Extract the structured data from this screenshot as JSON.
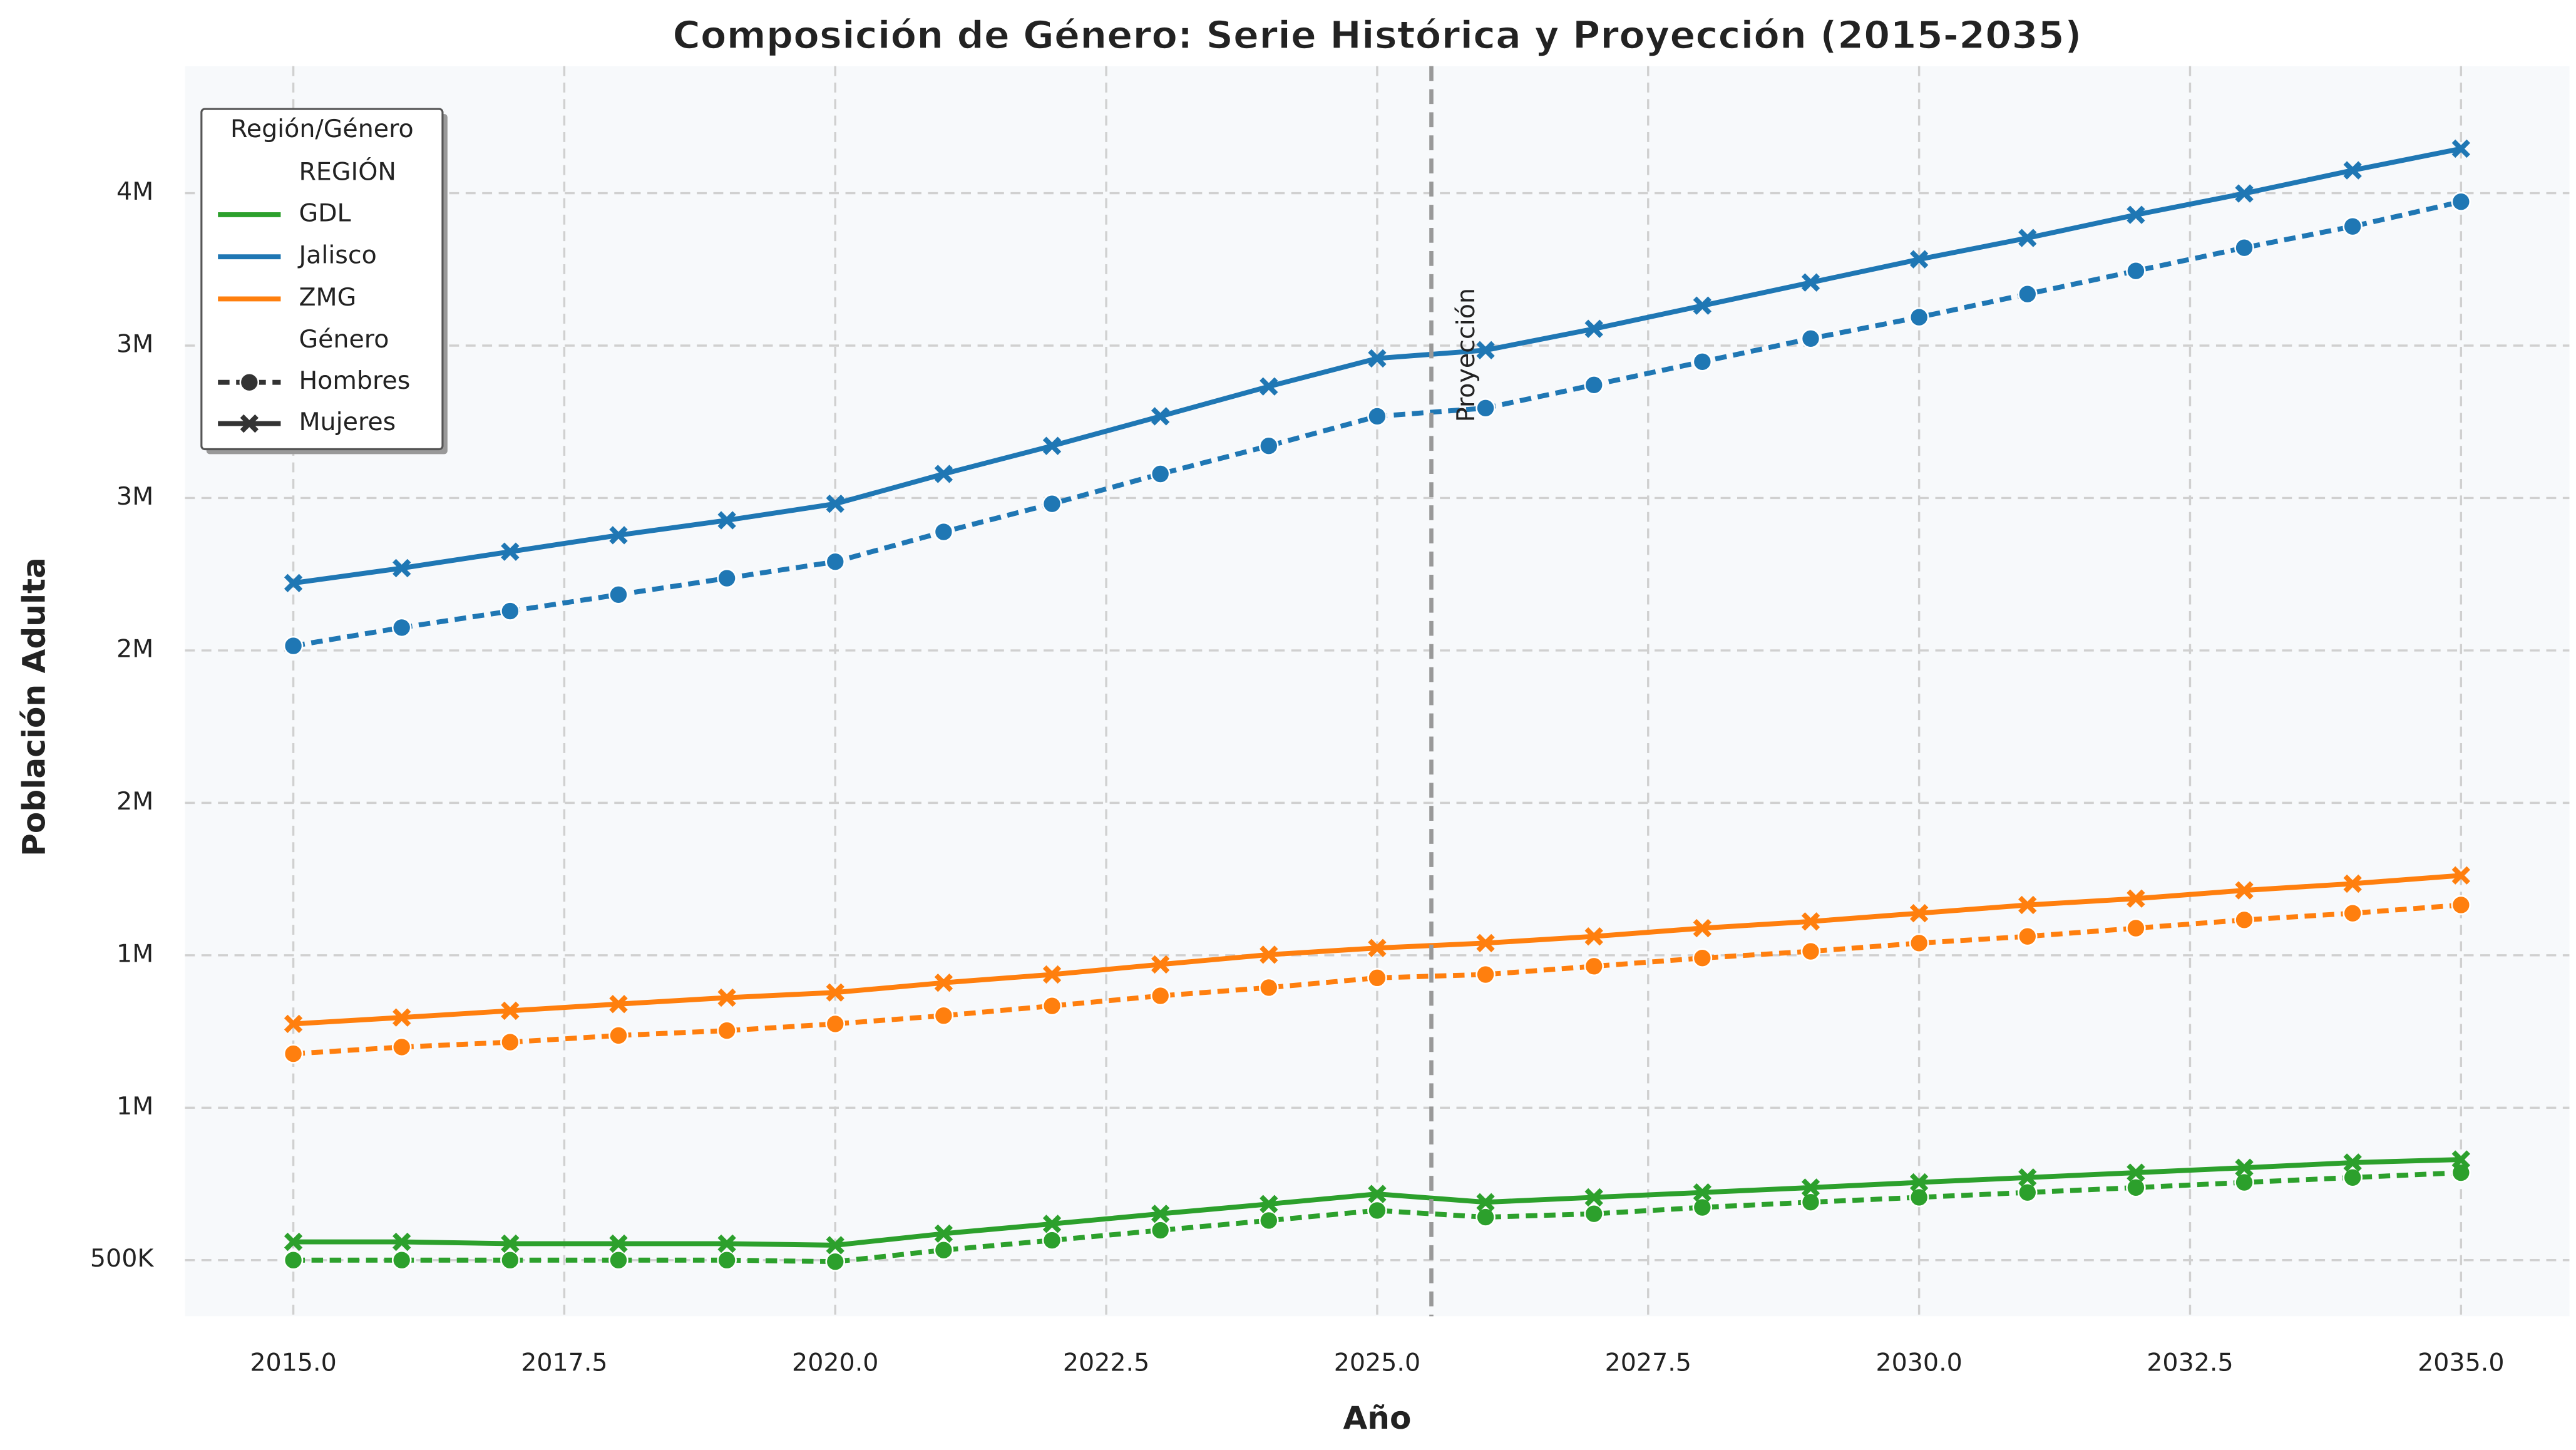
{
  "chart_data": {
    "type": "line",
    "title": "Composición de Género: Serie Histórica y Proyección (2015-2035)",
    "x_label": "Año",
    "y_label": "Población Adulta",
    "x": [
      2015,
      2016,
      2017,
      2018,
      2019,
      2020,
      2021,
      2022,
      2023,
      2024,
      2025,
      2026,
      2027,
      2028,
      2029,
      2030,
      2031,
      2032,
      2033,
      2034,
      2035
    ],
    "xlim": [
      2014,
      2036
    ],
    "xticks": [
      {
        "value": 2015,
        "label": "2015.0"
      },
      {
        "value": 2017.5,
        "label": "2017.5"
      },
      {
        "value": 2020,
        "label": "2020.0"
      },
      {
        "value": 2022.5,
        "label": "2022.5"
      },
      {
        "value": 2025,
        "label": "2025.0"
      },
      {
        "value": 2027.5,
        "label": "2027.5"
      },
      {
        "value": 2030,
        "label": "2030.0"
      },
      {
        "value": 2032.5,
        "label": "2032.5"
      },
      {
        "value": 2035,
        "label": "2035.0"
      }
    ],
    "ylim": [
      316000,
      4417000
    ],
    "yticks": [
      {
        "value": 500000,
        "label": "500K"
      },
      {
        "value": 1000000,
        "label": "1M"
      },
      {
        "value": 1500000,
        "label": "1M"
      },
      {
        "value": 2000000,
        "label": "2M"
      },
      {
        "value": 2500000,
        "label": "2M"
      },
      {
        "value": 3000000,
        "label": "3M"
      },
      {
        "value": 3500000,
        "label": "3M"
      },
      {
        "value": 4000000,
        "label": "4M"
      }
    ],
    "grid": true,
    "projection_x": 2025.5,
    "projection_label": "Proyección",
    "legend_title": "Región/Género",
    "legend_region_header": "REGIÓN",
    "legend_gender_header": "Género",
    "legend_position": "upper left",
    "series": [
      {
        "region": "GDL",
        "gender": "Hombres",
        "color": "#2ca02c",
        "dashed": true,
        "marker": "circle",
        "values": [
          500000,
          500000,
          500000,
          500000,
          500000,
          495000,
          533000,
          565000,
          598000,
          630000,
          663000,
          641000,
          652000,
          673000,
          690000,
          706000,
          722000,
          738000,
          755000,
          771000,
          787000
        ]
      },
      {
        "region": "GDL",
        "gender": "Mujeres",
        "color": "#2ca02c",
        "dashed": false,
        "marker": "x",
        "values": [
          560000,
          560000,
          554000,
          554000,
          554000,
          549000,
          587000,
          619000,
          652000,
          684000,
          717000,
          690000,
          706000,
          722000,
          738000,
          755000,
          771000,
          787000,
          803000,
          820000,
          830000
        ]
      },
      {
        "region": "Jalisco",
        "gender": "Hombres",
        "color": "#1f77b4",
        "dashed": true,
        "marker": "circle",
        "values": [
          2515000,
          2575000,
          2629000,
          2683000,
          2737000,
          2791000,
          2889000,
          2981000,
          3079000,
          3171000,
          3268000,
          3295000,
          3371000,
          3447000,
          3523000,
          3593000,
          3669000,
          3745000,
          3821000,
          3891000,
          3972000
        ]
      },
      {
        "region": "Jalisco",
        "gender": "Mujeres",
        "color": "#1f77b4",
        "dashed": false,
        "marker": "x",
        "values": [
          2721000,
          2770000,
          2824000,
          2878000,
          2927000,
          2981000,
          3079000,
          3171000,
          3268000,
          3366000,
          3458000,
          3485000,
          3555000,
          3631000,
          3707000,
          3783000,
          3853000,
          3929000,
          3999000,
          4075000,
          4146000
        ]
      },
      {
        "region": "ZMG",
        "gender": "Hombres",
        "color": "#ff7f0e",
        "dashed": true,
        "marker": "circle",
        "values": [
          1177000,
          1199000,
          1215000,
          1237000,
          1253000,
          1275000,
          1302000,
          1334000,
          1367000,
          1394000,
          1426000,
          1437000,
          1464000,
          1491000,
          1513000,
          1540000,
          1562000,
          1589000,
          1616000,
          1638000,
          1665000
        ]
      },
      {
        "region": "ZMG",
        "gender": "Mujeres",
        "color": "#ff7f0e",
        "dashed": false,
        "marker": "x",
        "values": [
          1275000,
          1296000,
          1318000,
          1340000,
          1361000,
          1378000,
          1410000,
          1437000,
          1470000,
          1502000,
          1524000,
          1540000,
          1562000,
          1589000,
          1611000,
          1638000,
          1665000,
          1686000,
          1713000,
          1735000,
          1762000
        ]
      }
    ]
  }
}
